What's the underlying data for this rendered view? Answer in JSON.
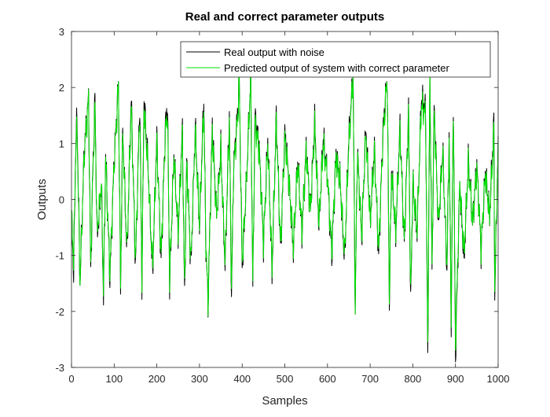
{
  "chart_data": {
    "type": "line",
    "title": "Real and correct parameter outputs",
    "xlabel": "Samples",
    "ylabel": "Outputs",
    "xlim": [
      0,
      1000
    ],
    "ylim": [
      -3,
      3
    ],
    "x_ticks": [
      0,
      100,
      200,
      300,
      400,
      500,
      600,
      700,
      800,
      900,
      1000
    ],
    "y_ticks": [
      -3,
      -2,
      -1,
      0,
      1,
      2,
      3
    ],
    "grid": false,
    "legend_position": "top-right",
    "series": [
      {
        "name": "Real output with noise",
        "color": "#000000",
        "n_samples": 1000,
        "keypoints": [
          [
            0,
            -0.3
          ],
          [
            5,
            -1.3
          ],
          [
            10,
            1.0
          ],
          [
            13,
            1.45
          ],
          [
            20,
            -1.5
          ],
          [
            30,
            0.9
          ],
          [
            40,
            1.8
          ],
          [
            45,
            -1.3
          ],
          [
            50,
            0.5
          ],
          [
            55,
            1.8
          ],
          [
            60,
            -0.7
          ],
          [
            70,
            0.3
          ],
          [
            75,
            -1.75
          ],
          [
            80,
            0.8
          ],
          [
            90,
            -1.4
          ],
          [
            100,
            0.7
          ],
          [
            110,
            2.05
          ],
          [
            115,
            -1.6
          ],
          [
            120,
            1.3
          ],
          [
            130,
            -1.0
          ],
          [
            140,
            1.8
          ],
          [
            150,
            -1.2
          ],
          [
            160,
            1.75
          ],
          [
            165,
            -1.5
          ],
          [
            170,
            1.8
          ],
          [
            180,
            0.5
          ],
          [
            190,
            -1.3
          ],
          [
            200,
            1.1
          ],
          [
            210,
            -1.1
          ],
          [
            220,
            1.3
          ],
          [
            225,
            1.7
          ],
          [
            230,
            -1.5
          ],
          [
            240,
            0.8
          ],
          [
            250,
            -0.6
          ],
          [
            260,
            1.25
          ],
          [
            265,
            -1.75
          ],
          [
            270,
            0.7
          ],
          [
            280,
            -1.2
          ],
          [
            290,
            1.3
          ],
          [
            300,
            -0.5
          ],
          [
            310,
            1.8
          ],
          [
            315,
            -0.8
          ],
          [
            320,
            -1.85
          ],
          [
            330,
            1.3
          ],
          [
            340,
            -0.3
          ],
          [
            350,
            0.9
          ],
          [
            360,
            -1.2
          ],
          [
            370,
            1.5
          ],
          [
            375,
            -1.75
          ],
          [
            380,
            0.6
          ],
          [
            390,
            1.6
          ],
          [
            393,
            2.2
          ],
          [
            400,
            -1.2
          ],
          [
            410,
            0.3
          ],
          [
            420,
            2.2
          ],
          [
            425,
            -1.6
          ],
          [
            430,
            1.5
          ],
          [
            440,
            0.9
          ],
          [
            450,
            -0.8
          ],
          [
            460,
            1.1
          ],
          [
            470,
            -1.3
          ],
          [
            480,
            1.5
          ],
          [
            490,
            -0.9
          ],
          [
            500,
            1.2
          ],
          [
            510,
            0.3
          ],
          [
            520,
            -0.9
          ],
          [
            530,
            0.7
          ],
          [
            540,
            -0.6
          ],
          [
            550,
            0.9
          ],
          [
            560,
            -0.2
          ],
          [
            570,
            1.4
          ],
          [
            580,
            -0.5
          ],
          [
            590,
            1.1
          ],
          [
            600,
            0.4
          ],
          [
            610,
            -1.0
          ],
          [
            620,
            0.8
          ],
          [
            630,
            0.3
          ],
          [
            640,
            -1.1
          ],
          [
            650,
            1.1
          ],
          [
            660,
            2.2
          ],
          [
            665,
            -2.0
          ],
          [
            670,
            0.9
          ],
          [
            680,
            -0.7
          ],
          [
            690,
            1.3
          ],
          [
            700,
            -0.4
          ],
          [
            710,
            0.9
          ],
          [
            720,
            -1.0
          ],
          [
            730,
            1.2
          ],
          [
            740,
            2.2
          ],
          [
            745,
            -1.85
          ],
          [
            750,
            0.5
          ],
          [
            760,
            -0.6
          ],
          [
            770,
            1.3
          ],
          [
            780,
            -0.8
          ],
          [
            790,
            1.6
          ],
          [
            795,
            -1.9
          ],
          [
            800,
            0.3
          ],
          [
            810,
            -0.6
          ],
          [
            820,
            1.8
          ],
          [
            830,
            1.6
          ],
          [
            835,
            -2.8
          ],
          [
            840,
            2.2
          ],
          [
            845,
            -1.3
          ],
          [
            850,
            1.7
          ],
          [
            860,
            -0.5
          ],
          [
            870,
            0.9
          ],
          [
            880,
            -1.3
          ],
          [
            885,
            1.2
          ],
          [
            890,
            -2.2
          ],
          [
            895,
            1.8
          ],
          [
            900,
            -2.8
          ],
          [
            910,
            0.3
          ],
          [
            920,
            -1.1
          ],
          [
            930,
            0.7
          ],
          [
            940,
            -0.4
          ],
          [
            950,
            0.6
          ],
          [
            960,
            -0.9
          ],
          [
            970,
            0.5
          ],
          [
            980,
            -0.3
          ],
          [
            990,
            1.35
          ],
          [
            992,
            -1.75
          ],
          [
            1000,
            1.0
          ]
        ]
      },
      {
        "name": "Predicted output of system with correct parameter",
        "color": "#00e000",
        "n_samples": 1000,
        "keypoints": [
          [
            0,
            -0.3
          ],
          [
            5,
            -1.1
          ],
          [
            10,
            0.9
          ],
          [
            13,
            1.3
          ],
          [
            20,
            -1.5
          ],
          [
            30,
            0.85
          ],
          [
            40,
            1.8
          ],
          [
            45,
            -1.2
          ],
          [
            50,
            0.45
          ],
          [
            55,
            1.65
          ],
          [
            60,
            -0.6
          ],
          [
            70,
            0.3
          ],
          [
            75,
            -1.6
          ],
          [
            80,
            0.75
          ],
          [
            90,
            -1.3
          ],
          [
            100,
            0.65
          ],
          [
            110,
            2.05
          ],
          [
            115,
            -1.5
          ],
          [
            120,
            1.2
          ],
          [
            130,
            -0.9
          ],
          [
            140,
            1.7
          ],
          [
            150,
            -1.1
          ],
          [
            160,
            1.6
          ],
          [
            165,
            -1.4
          ],
          [
            170,
            1.65
          ],
          [
            180,
            0.45
          ],
          [
            190,
            -1.2
          ],
          [
            200,
            1.0
          ],
          [
            210,
            -1.0
          ],
          [
            220,
            1.2
          ],
          [
            225,
            1.55
          ],
          [
            230,
            -1.4
          ],
          [
            240,
            0.75
          ],
          [
            250,
            -0.55
          ],
          [
            260,
            1.15
          ],
          [
            265,
            -1.6
          ],
          [
            270,
            0.65
          ],
          [
            280,
            -1.1
          ],
          [
            290,
            1.2
          ],
          [
            300,
            -0.45
          ],
          [
            310,
            1.65
          ],
          [
            315,
            -0.75
          ],
          [
            320,
            -1.85
          ],
          [
            330,
            1.2
          ],
          [
            340,
            -0.3
          ],
          [
            350,
            0.85
          ],
          [
            360,
            -1.1
          ],
          [
            370,
            1.4
          ],
          [
            375,
            -1.6
          ],
          [
            380,
            0.55
          ],
          [
            390,
            1.5
          ],
          [
            393,
            2.2
          ],
          [
            400,
            -1.1
          ],
          [
            410,
            0.3
          ],
          [
            420,
            2.2
          ],
          [
            425,
            -1.5
          ],
          [
            430,
            1.4
          ],
          [
            440,
            0.85
          ],
          [
            450,
            -0.75
          ],
          [
            460,
            1.0
          ],
          [
            470,
            -1.2
          ],
          [
            480,
            1.4
          ],
          [
            490,
            -0.85
          ],
          [
            500,
            1.1
          ],
          [
            510,
            0.3
          ],
          [
            520,
            -0.85
          ],
          [
            530,
            0.65
          ],
          [
            540,
            -0.55
          ],
          [
            550,
            0.85
          ],
          [
            560,
            -0.2
          ],
          [
            570,
            1.3
          ],
          [
            580,
            -0.45
          ],
          [
            590,
            1.0
          ],
          [
            600,
            0.4
          ],
          [
            610,
            -0.9
          ],
          [
            620,
            0.75
          ],
          [
            630,
            0.3
          ],
          [
            640,
            -1.0
          ],
          [
            650,
            1.0
          ],
          [
            660,
            2.2
          ],
          [
            665,
            -2.0
          ],
          [
            670,
            0.85
          ],
          [
            680,
            -0.65
          ],
          [
            690,
            1.2
          ],
          [
            700,
            -0.4
          ],
          [
            710,
            0.85
          ],
          [
            720,
            -0.9
          ],
          [
            730,
            1.1
          ],
          [
            740,
            2.2
          ],
          [
            745,
            -1.75
          ],
          [
            750,
            0.45
          ],
          [
            760,
            -0.55
          ],
          [
            770,
            1.2
          ],
          [
            780,
            -0.75
          ],
          [
            790,
            1.5
          ],
          [
            795,
            -1.75
          ],
          [
            800,
            0.3
          ],
          [
            810,
            -0.55
          ],
          [
            820,
            1.7
          ],
          [
            830,
            1.5
          ],
          [
            835,
            -2.6
          ],
          [
            840,
            2.2
          ],
          [
            845,
            -1.2
          ],
          [
            850,
            1.6
          ],
          [
            860,
            -0.45
          ],
          [
            870,
            0.85
          ],
          [
            880,
            -1.2
          ],
          [
            885,
            1.1
          ],
          [
            890,
            -2.05
          ],
          [
            895,
            1.7
          ],
          [
            900,
            -2.6
          ],
          [
            910,
            0.3
          ],
          [
            920,
            -1.0
          ],
          [
            930,
            0.65
          ],
          [
            940,
            -0.4
          ],
          [
            950,
            0.55
          ],
          [
            960,
            -0.85
          ],
          [
            970,
            0.45
          ],
          [
            980,
            -0.3
          ],
          [
            990,
            1.2
          ],
          [
            992,
            -1.6
          ],
          [
            1000,
            0.95
          ]
        ]
      }
    ]
  }
}
